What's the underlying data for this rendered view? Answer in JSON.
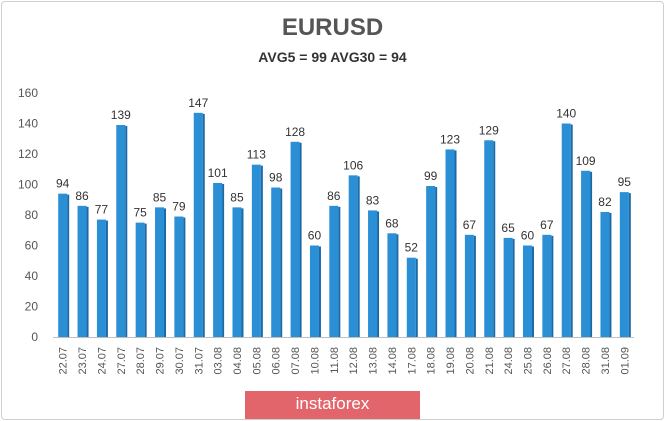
{
  "chart_data": {
    "type": "bar",
    "title": "EURUSD",
    "subtitle": "AVG5 = 99 AVG30 = 94",
    "categories": [
      "22.07",
      "23.07",
      "24.07",
      "27.07",
      "28.07",
      "29.07",
      "30.07",
      "31.07",
      "03.08",
      "04.08",
      "05.08",
      "06.08",
      "07.08",
      "10.08",
      "11.08",
      "12.08",
      "13.08",
      "14.08",
      "17.08",
      "18.08",
      "19.08",
      "20.08",
      "21.08",
      "24.08",
      "25.08",
      "26.08",
      "27.08",
      "28.08",
      "31.08",
      "01.09"
    ],
    "values": [
      94,
      86,
      77,
      139,
      75,
      85,
      79,
      147,
      101,
      85,
      113,
      98,
      128,
      60,
      86,
      106,
      83,
      68,
      52,
      99,
      123,
      67,
      129,
      65,
      60,
      67,
      140,
      109,
      82,
      95
    ],
    "ylim": [
      0,
      160
    ],
    "yticks": [
      0,
      20,
      40,
      60,
      80,
      100,
      120,
      140,
      160
    ],
    "grid": false,
    "legend": "none",
    "bar_color": "#2b8fd6",
    "bar_side_color": "#1a6aa8"
  },
  "brand": {
    "text": "instaforex",
    "color": "#e2656c"
  }
}
